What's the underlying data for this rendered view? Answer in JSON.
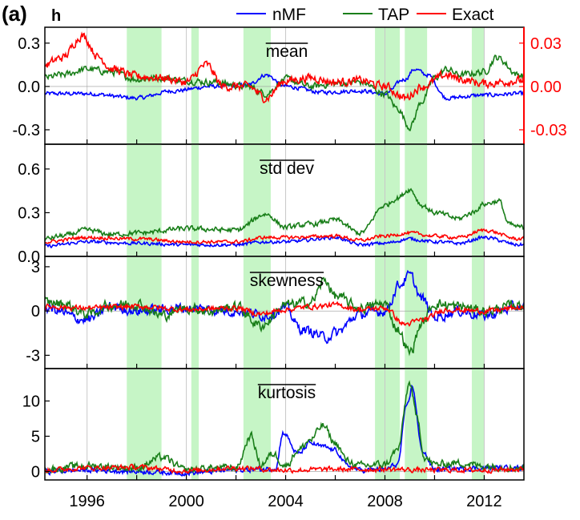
{
  "figure": {
    "panel_label": "(a)",
    "variable_label": "h"
  },
  "legend": [
    {
      "name": "nMF",
      "color": "#0000ff"
    },
    {
      "name": "TAP",
      "color": "#1a7f1a"
    },
    {
      "name": "Exact",
      "color": "#ff0000"
    }
  ],
  "colors": {
    "recession_shading": "#c6f5c6",
    "vertical_grid": "#c8c8c8",
    "axis": "#000000",
    "right_axis": "#ff0000"
  },
  "x_axis": {
    "range": [
      1994.3,
      2013.6
    ],
    "ticks": [
      1996,
      2000,
      2004,
      2008,
      2012
    ],
    "tick_labels": [
      "1996",
      "2000",
      "2004",
      "2008",
      "2012"
    ],
    "minor_ticks": [
      1998,
      2002,
      2006,
      2010
    ]
  },
  "shaded_periods": [
    [
      1997.6,
      1999.0
    ],
    [
      2000.2,
      2000.5
    ],
    [
      2002.3,
      2003.4
    ],
    [
      2007.6,
      2008.6
    ],
    [
      2008.8,
      2009.7
    ],
    [
      2011.5,
      2012.0
    ]
  ],
  "chart_data": [
    {
      "type": "line",
      "title": "mean",
      "ylim": [
        -0.4,
        0.41
      ],
      "yticks": [
        -0.3,
        0.0,
        0.3
      ],
      "ytick_labels": [
        "-0.3",
        "0.0",
        "0.3"
      ],
      "right_axis": {
        "ylim": [
          -0.04,
          0.041
        ],
        "ticks": [
          -0.03,
          0.0,
          0.03
        ],
        "tick_labels": [
          "-0.03",
          "0.00",
          "0.03"
        ],
        "series": "Exact"
      },
      "series": [
        {
          "name": "nMF",
          "x": [
            1994.3,
            1996,
            1998,
            1999.5,
            2001,
            2002.5,
            2003.2,
            2004,
            2005.5,
            2007,
            2008,
            2008.8,
            2009.2,
            2009.7,
            2010.5,
            2012,
            2013.4
          ],
          "y": [
            -0.05,
            -0.05,
            -0.08,
            -0.03,
            0.0,
            0.01,
            0.08,
            0.0,
            -0.04,
            -0.03,
            -0.05,
            0.05,
            0.12,
            0.08,
            -0.08,
            -0.06,
            -0.05
          ],
          "noise": 0.012
        },
        {
          "name": "TAP",
          "x": [
            1994.3,
            1995,
            1996,
            1997,
            1998,
            1999,
            2000,
            2001,
            2002.5,
            2003.2,
            2004,
            2005,
            2006,
            2007,
            2008,
            2008.5,
            2009,
            2009.5,
            2010,
            2010.5,
            2011,
            2012,
            2012.5,
            2013.4
          ],
          "y": [
            0.06,
            0.08,
            0.12,
            0.1,
            0.05,
            0.06,
            0.04,
            0.03,
            0.0,
            -0.05,
            0.05,
            0.0,
            0.02,
            0.03,
            -0.05,
            -0.15,
            -0.28,
            -0.1,
            0.06,
            0.12,
            0.08,
            0.1,
            0.2,
            0.08
          ],
          "noise": 0.02
        },
        {
          "name": "Exact",
          "x": [
            1994.3,
            1995,
            1995.8,
            1996.5,
            1997,
            1998,
            1999,
            2000,
            2000.8,
            2001.5,
            2002.5,
            2003.2,
            2004,
            2005,
            2006,
            2007,
            2008,
            2008.8,
            2009.5,
            2010.5,
            2011,
            2012,
            2013.4
          ],
          "y": [
            0.015,
            0.02,
            0.035,
            0.02,
            0.012,
            0.007,
            0.006,
            0.003,
            0.015,
            0.0,
            0.0,
            -0.008,
            0.004,
            0.006,
            0.003,
            0.004,
            0.0,
            -0.008,
            0.0,
            0.008,
            0.005,
            0.002,
            0.004
          ],
          "noise": 0.0025
        }
      ]
    },
    {
      "type": "line",
      "title": "std dev",
      "ylim": [
        0.0,
        0.77
      ],
      "yticks": [
        0.0,
        0.3,
        0.6
      ],
      "ytick_labels": [
        "0.0",
        "0.3",
        "0.6"
      ],
      "series": [
        {
          "name": "nMF",
          "x": [
            1994.3,
            1996,
            1998,
            2000,
            2002,
            2003.2,
            2004,
            2006,
            2007,
            2008,
            2009,
            2010,
            2011,
            2012,
            2013.4
          ],
          "y": [
            0.07,
            0.1,
            0.09,
            0.08,
            0.08,
            0.1,
            0.1,
            0.13,
            0.08,
            0.09,
            0.12,
            0.1,
            0.09,
            0.13,
            0.08
          ],
          "noise": 0.01
        },
        {
          "name": "TAP",
          "x": [
            1994.3,
            1995,
            1996,
            1997,
            1998,
            2000,
            2002,
            2003.2,
            2004,
            2005,
            2006,
            2007,
            2008,
            2008.5,
            2009,
            2009.5,
            2010,
            2011,
            2011.5,
            2012,
            2012.6,
            2013,
            2013.4
          ],
          "y": [
            0.12,
            0.14,
            0.18,
            0.15,
            0.16,
            0.19,
            0.18,
            0.29,
            0.2,
            0.22,
            0.25,
            0.16,
            0.35,
            0.4,
            0.46,
            0.35,
            0.3,
            0.26,
            0.3,
            0.36,
            0.38,
            0.22,
            0.2
          ],
          "noise": 0.015
        },
        {
          "name": "Exact",
          "x": [
            1994.3,
            1996,
            1998,
            2000,
            2002,
            2003.2,
            2004,
            2006,
            2007,
            2008,
            2009,
            2010,
            2011,
            2012,
            2013.4
          ],
          "y": [
            0.1,
            0.13,
            0.12,
            0.1,
            0.1,
            0.13,
            0.13,
            0.14,
            0.11,
            0.14,
            0.16,
            0.14,
            0.13,
            0.18,
            0.12
          ],
          "noise": 0.01
        }
      ]
    },
    {
      "type": "line",
      "title": "skewness",
      "ylim": [
        -3.9,
        3.7
      ],
      "yticks": [
        -3,
        0,
        3
      ],
      "ytick_labels": [
        "-3",
        "0",
        "3"
      ],
      "series": [
        {
          "name": "nMF",
          "x": [
            1994.3,
            1996,
            1997,
            1998,
            2000,
            2002,
            2003.2,
            2004,
            2004.6,
            2005,
            2005.6,
            2006,
            2007,
            2008,
            2008.6,
            2009,
            2009.5,
            2010,
            2011,
            2012,
            2013.4
          ],
          "y": [
            0.2,
            -0.6,
            0.3,
            0.0,
            0.2,
            0.0,
            -0.3,
            0.2,
            -1.2,
            -1.4,
            -1.8,
            -1.5,
            -0.2,
            0.0,
            1.8,
            2.4,
            0.8,
            -0.4,
            0.0,
            -0.3,
            0.3
          ],
          "noise": 0.3
        },
        {
          "name": "TAP",
          "x": [
            1994.3,
            1995,
            1996,
            1997,
            1998,
            1999,
            2000,
            2001,
            2002,
            2003,
            2004,
            2005,
            2005.6,
            2006,
            2007,
            2008,
            2008.5,
            2009,
            2009.5,
            2010,
            2011,
            2012,
            2013.4
          ],
          "y": [
            0.6,
            0.5,
            -0.2,
            0.4,
            0.5,
            -0.3,
            0.2,
            0.0,
            0.3,
            -1.0,
            0.4,
            0.6,
            2.1,
            1.0,
            0.2,
            0.5,
            -1.2,
            -2.8,
            -0.8,
            0.5,
            0.3,
            0.0,
            0.4
          ],
          "noise": 0.3
        },
        {
          "name": "Exact",
          "x": [
            1994.3,
            1996,
            1998,
            2000,
            2002,
            2003,
            2004,
            2005,
            2006,
            2007,
            2008,
            2008.8,
            2009.5,
            2010.5,
            2012,
            2013.4
          ],
          "y": [
            0.3,
            0.2,
            0.3,
            0.1,
            0.2,
            -0.2,
            0.1,
            0.3,
            0.4,
            0.1,
            0.2,
            -0.9,
            -0.6,
            0.1,
            0.0,
            0.2
          ],
          "noise": 0.15
        }
      ]
    },
    {
      "type": "line",
      "title": "kurtosis",
      "ylim": [
        -1.2,
        14.6
      ],
      "yticks": [
        0,
        5,
        10
      ],
      "ytick_labels": [
        "0",
        "5",
        "10"
      ],
      "series": [
        {
          "name": "nMF",
          "x": [
            1994.3,
            1996,
            1998,
            2000,
            2002,
            2003,
            2003.6,
            2003.9,
            2004.5,
            2005,
            2005.5,
            2006,
            2006.5,
            2007,
            2008,
            2008.5,
            2008.9,
            2009.1,
            2009.5,
            2010,
            2012,
            2013.4
          ],
          "y": [
            0.0,
            0.2,
            0.0,
            -0.2,
            0.2,
            0.3,
            0.5,
            5.5,
            2.5,
            4.0,
            3.5,
            3.0,
            0.8,
            0.2,
            0.3,
            1.0,
            9.5,
            12.0,
            3.0,
            0.3,
            0.5,
            0.5
          ],
          "noise": 0.3
        },
        {
          "name": "TAP",
          "x": [
            1994.3,
            1996,
            1998,
            1999,
            2000,
            2001,
            2002,
            2002.6,
            2003,
            2003.5,
            2004,
            2004.5,
            2005,
            2005.5,
            2006,
            2006.5,
            2007,
            2008,
            2008.5,
            2009,
            2009.3,
            2009.6,
            2010,
            2011,
            2012,
            2013.4
          ],
          "y": [
            0.3,
            0.8,
            0.5,
            2.0,
            0.2,
            0.5,
            0.5,
            5.0,
            1.0,
            2.5,
            0.8,
            3.0,
            4.5,
            6.5,
            4.0,
            1.5,
            0.8,
            1.0,
            3.0,
            12.5,
            7.5,
            2.0,
            1.0,
            1.2,
            0.8,
            0.5
          ],
          "noise": 0.45
        },
        {
          "name": "Exact",
          "x": [
            1994.3,
            1996,
            1998,
            2000,
            2002,
            2004,
            2006,
            2008,
            2010,
            2012,
            2013.4
          ],
          "y": [
            0.2,
            0.5,
            0.6,
            0.1,
            0.5,
            0.2,
            0.3,
            0.3,
            0.2,
            0.2,
            0.3
          ],
          "noise": 0.3
        }
      ]
    }
  ]
}
